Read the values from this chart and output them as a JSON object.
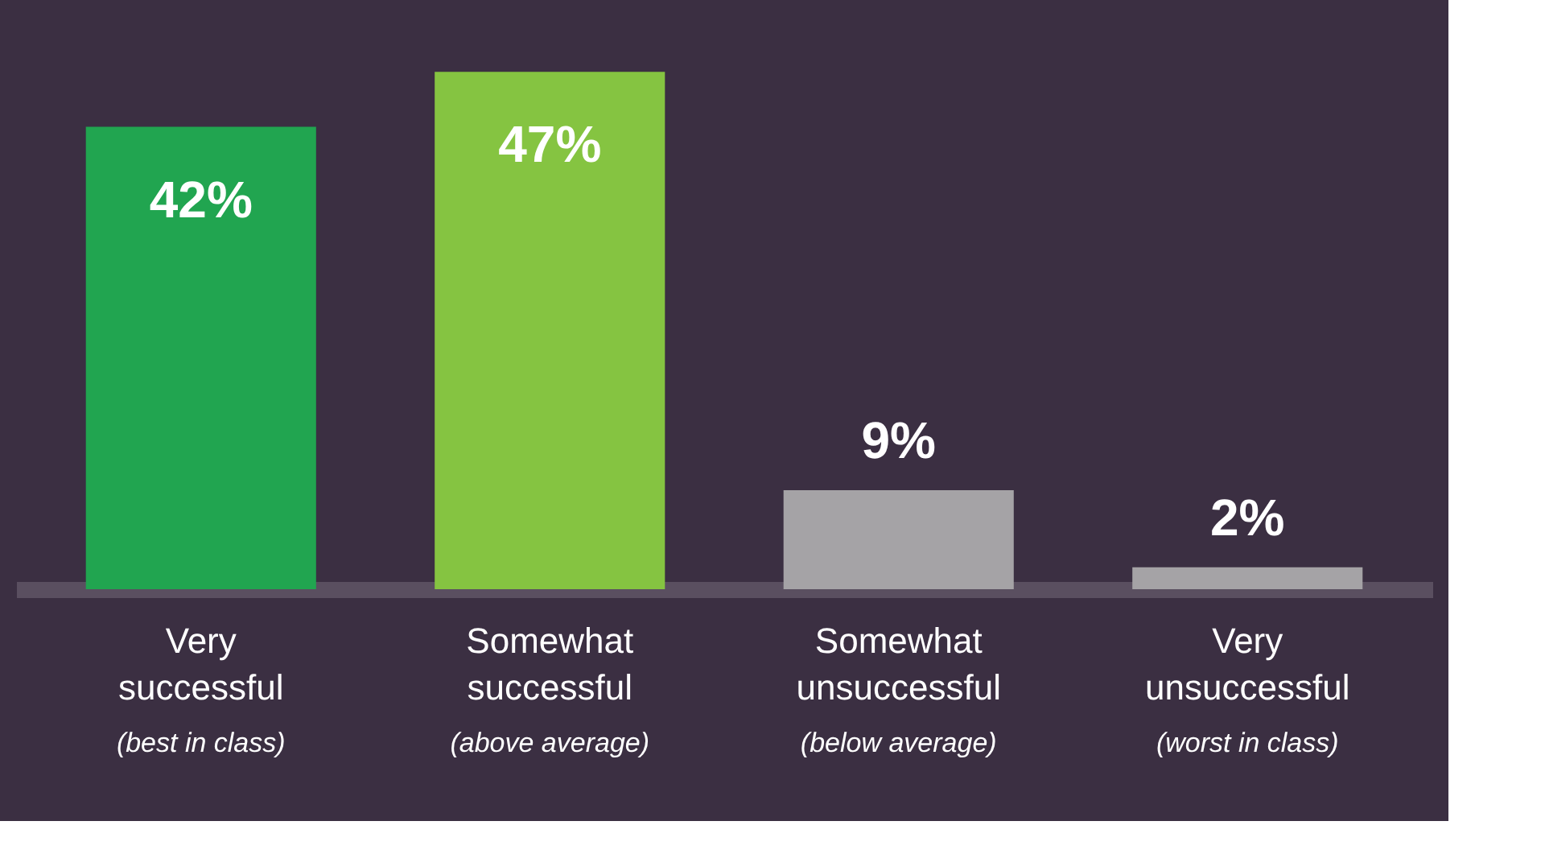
{
  "chart_data": {
    "type": "bar",
    "categories": [
      "Very successful",
      "Somewhat successful",
      "Somewhat unsuccessful",
      "Very unsuccessful"
    ],
    "values": [
      42,
      47,
      9,
      2
    ],
    "colors": [
      "#21a550",
      "#85c441",
      "#a5a3a6",
      "#a5a3a6"
    ],
    "value_labels": [
      "42%",
      "47%",
      "9%",
      "2%"
    ],
    "grid": false,
    "annotations": [
      "(best in class)",
      "(above average)",
      "(below average)",
      "(worst in class)"
    ]
  }
}
